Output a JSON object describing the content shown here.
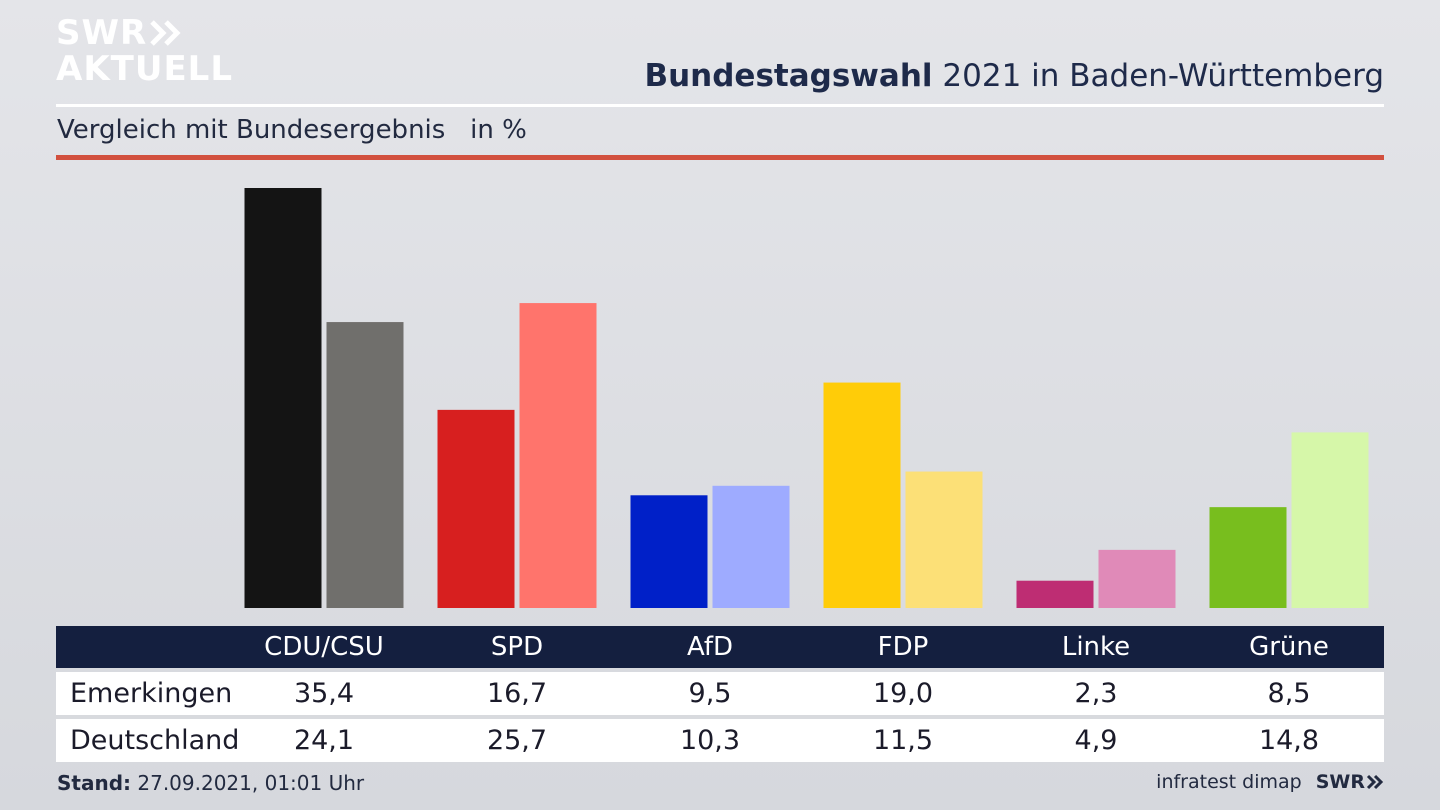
{
  "logo": {
    "line1": "SWR",
    "line2": "AKTUELL"
  },
  "header": {
    "title_bold": "Bundestagswahl",
    "title_rest": " 2021 in Baden-Württemberg",
    "subtitle": "Vergleich mit Bundesergebnis   in %"
  },
  "chart_data": {
    "type": "bar",
    "title": "Bundestagswahl 2021 in Baden-Württemberg",
    "subtitle": "Vergleich mit Bundesergebnis in %",
    "categories": [
      "CDU/CSU",
      "SPD",
      "AfD",
      "FDP",
      "Linke",
      "Grüne"
    ],
    "series": [
      {
        "name": "Emerkingen",
        "values": [
          35.4,
          16.7,
          9.5,
          19.0,
          2.3,
          8.5
        ],
        "labels": [
          "35,4",
          "16,7",
          "9,5",
          "19,0",
          "2,3",
          "8,5"
        ],
        "colors": [
          "#141414",
          "#d71f1f",
          "#0020c8",
          "#ffcc08",
          "#be2d73",
          "#78be1e"
        ]
      },
      {
        "name": "Deutschland",
        "values": [
          24.1,
          25.7,
          10.3,
          11.5,
          4.9,
          14.8
        ],
        "labels": [
          "24,1",
          "25,7",
          "10,3",
          "11,5",
          "4,9",
          "14,8"
        ],
        "colors": [
          "#706f6c",
          "#ff746c",
          "#9eabff",
          "#fce077",
          "#e08ab8",
          "#d6f7a9"
        ]
      }
    ],
    "ylim": [
      0,
      36
    ],
    "grid": false
  },
  "footer": {
    "stand_label": "Stand:",
    "stand_value": " 27.09.2021, 01:01 Uhr",
    "source": "infratest dimap",
    "brand": "SWR"
  }
}
